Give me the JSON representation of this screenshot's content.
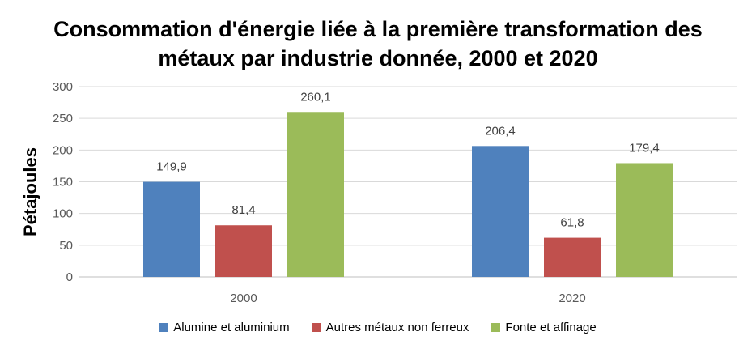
{
  "chart_data": {
    "type": "bar",
    "title_lines": [
      "Consommation d'énergie liée à la première transformation des",
      "métaux par industrie donnée, 2000 et 2020"
    ],
    "xlabel": "",
    "ylabel": "Pétajoules",
    "ylim": [
      0,
      300
    ],
    "yticks": [
      "0",
      "50",
      "100",
      "150",
      "200",
      "250",
      "300"
    ],
    "categories": [
      "2000",
      "2020"
    ],
    "grid": true,
    "legend_position": "bottom",
    "series": [
      {
        "name": "Alumine et aluminium",
        "values": [
          149.9,
          206.4
        ],
        "labels": [
          "149,9",
          "206,4"
        ],
        "color": "#4F81BD"
      },
      {
        "name": "Autres métaux non ferreux",
        "values": [
          81.4,
          61.8
        ],
        "labels": [
          "81,4",
          "61,8"
        ],
        "color": "#C0504D"
      },
      {
        "name": "Fonte et affinage",
        "values": [
          260.1,
          179.4
        ],
        "labels": [
          "260,1",
          "179,4"
        ],
        "color": "#9BBB59"
      }
    ]
  }
}
